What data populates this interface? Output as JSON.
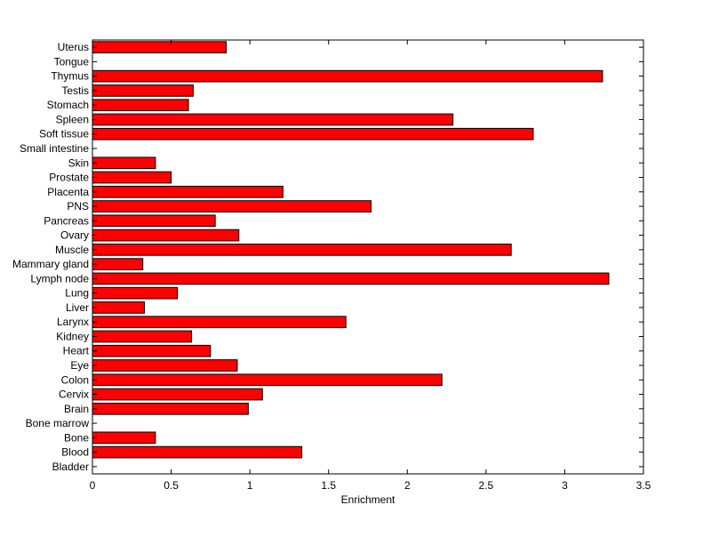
{
  "chart_data": {
    "type": "bar",
    "orientation": "horizontal",
    "title": "",
    "xlabel": "Enrichment",
    "ylabel": "",
    "xlim": [
      0,
      3.5
    ],
    "xticks": [
      0,
      0.5,
      1,
      1.5,
      2,
      2.5,
      3,
      3.5
    ],
    "xtick_labels": [
      "0",
      "0.5",
      "1",
      "1.5",
      "2",
      "2.5",
      "3",
      "3.5"
    ],
    "grid": false,
    "legend": "none",
    "categories": [
      "Uterus",
      "Tongue",
      "Thymus",
      "Testis",
      "Stomach",
      "Spleen",
      "Soft tissue",
      "Small intestine",
      "Skin",
      "Prostate",
      "Placenta",
      "PNS",
      "Pancreas",
      "Ovary",
      "Muscle",
      "Mammary gland",
      "Lymph node",
      "Lung",
      "Liver",
      "Larynx",
      "Kidney",
      "Heart",
      "Eye",
      "Colon",
      "Cervix",
      "Brain",
      "Bone marrow",
      "Bone",
      "Blood",
      "Bladder"
    ],
    "values": [
      0.85,
      0,
      3.24,
      0.64,
      0.61,
      2.29,
      2.8,
      0,
      0.4,
      0.5,
      1.21,
      1.77,
      0.78,
      0.93,
      2.66,
      0.32,
      3.28,
      0.54,
      0.33,
      1.61,
      0.63,
      0.75,
      0.92,
      2.22,
      1.08,
      0.99,
      0,
      0.4,
      1.33,
      0
    ],
    "bar_color": "#ff0000",
    "edge_color": "#000000"
  }
}
